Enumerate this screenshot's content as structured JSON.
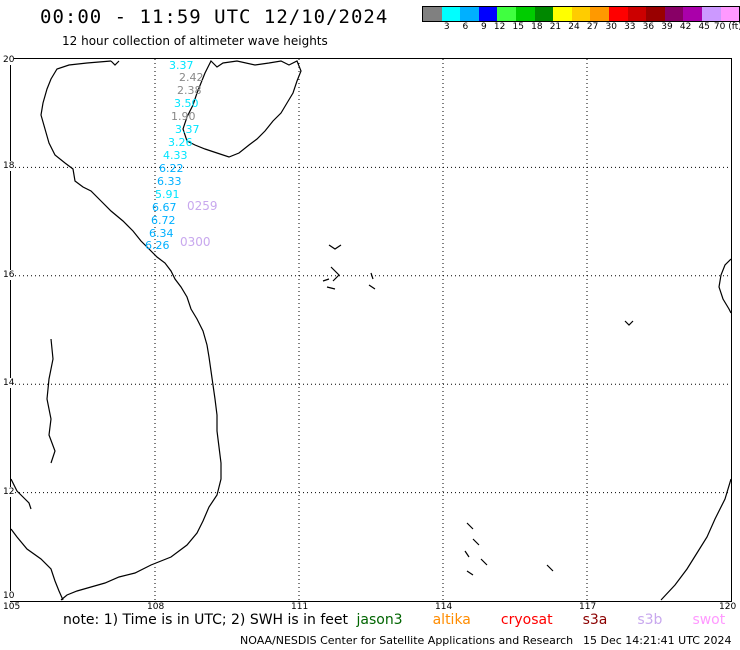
{
  "header": {
    "title": "00:00 - 11:59 UTC 12/10/2024",
    "subtitle": "12 hour collection of altimeter wave heights"
  },
  "colorbar": {
    "colors": [
      "#808080",
      "#00ffff",
      "#00b0ff",
      "#0000ff",
      "#40ff40",
      "#00cc00",
      "#008800",
      "#ffff00",
      "#ffcc00",
      "#ff9900",
      "#ff0000",
      "#cc0000",
      "#990000",
      "#880066",
      "#aa00aa",
      "#cc99ff",
      "#ff99ff",
      "#000000"
    ],
    "labels": [
      "3",
      "6",
      "9",
      "12",
      "15",
      "18",
      "21",
      "24",
      "27",
      "30",
      "33",
      "36",
      "39",
      "42",
      "45",
      "70 (ft)"
    ]
  },
  "map": {
    "lat_labels": [
      "20",
      "18",
      "16",
      "14",
      "12",
      "10"
    ],
    "lon_labels": [
      "105",
      "108",
      "111",
      "114",
      "117",
      "120"
    ],
    "swh_points": [
      {
        "text": "3.37",
        "color": "#00e5ff"
      },
      {
        "text": "2.42",
        "color": "#888888"
      },
      {
        "text": "2.38",
        "color": "#888888"
      },
      {
        "text": "3.50",
        "color": "#00e5ff"
      },
      {
        "text": "1.90",
        "color": "#888888"
      },
      {
        "text": "3.37",
        "color": "#00e5ff"
      },
      {
        "text": "3.26",
        "color": "#00e5ff"
      },
      {
        "text": "4.33",
        "color": "#00e5ff"
      },
      {
        "text": "6.22",
        "color": "#00b0ff"
      },
      {
        "text": "6.33",
        "color": "#00b0ff"
      },
      {
        "text": "5.91",
        "color": "#00e5ff"
      },
      {
        "text": "6.67",
        "color": "#00b0ff"
      },
      {
        "text": "6.72",
        "color": "#00b0ff"
      },
      {
        "text": "6.34",
        "color": "#00b0ff"
      },
      {
        "text": "6.26",
        "color": "#00b0ff"
      }
    ],
    "time_labels": [
      {
        "text": "0259",
        "color": "#c8a8ee"
      },
      {
        "text": "0300",
        "color": "#c8a8ee"
      }
    ]
  },
  "footer": {
    "note": "note: 1) Time is in UTC; 2) SWH is in feet",
    "satellites": [
      {
        "name": "jason3",
        "color": "#006400"
      },
      {
        "name": "altika",
        "color": "#ff8c00"
      },
      {
        "name": "cryosat",
        "color": "#ff0000"
      },
      {
        "name": "s3a",
        "color": "#8b0000"
      },
      {
        "name": "s3b",
        "color": "#c8a8ee"
      },
      {
        "name": "swot",
        "color": "#ff99ff"
      }
    ],
    "credit": "NOAA/NESDIS Center for Satellite Applications and Research",
    "timestamp": "15 Dec 14:21:41 UTC 2024"
  }
}
